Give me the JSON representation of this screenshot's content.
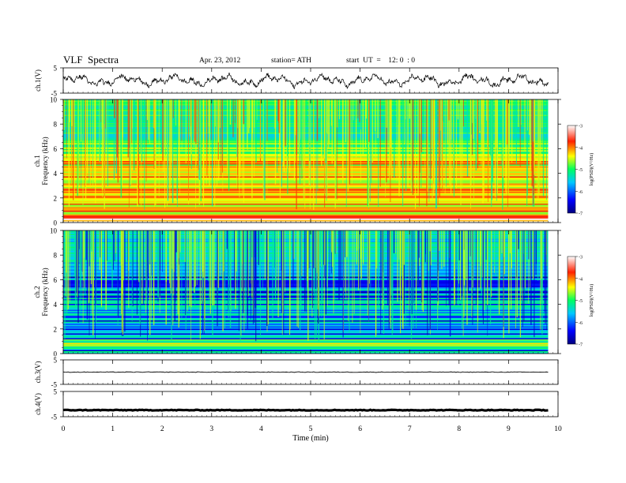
{
  "header": {
    "title": "VLF  Spectra",
    "date": "Apr. 23, 2012",
    "station": "station= ATH",
    "start": "start  UT  =    12: 0  : 0"
  },
  "chart_data": [
    {
      "type": "line",
      "panel": "ch1-waveform",
      "ylabel": "ch.1(V)",
      "ylim": [
        -5,
        5
      ],
      "y_ticks": [
        "5",
        "-5"
      ]
    },
    {
      "type": "heatmap",
      "panel": "ch1-spectrogram",
      "ylabel_channel": "ch.1",
      "ylabel": "Frequency  (kHz)",
      "ylim": [
        0,
        10
      ],
      "y_ticks": [
        "0",
        "2",
        "4",
        "6",
        "8",
        "10"
      ],
      "colorbar": {
        "label": "log(PSD)(V²/Hz)",
        "range": [
          -7,
          -3
        ],
        "ticks": [
          "-3",
          "-4",
          "-5",
          "-6",
          "-7"
        ]
      }
    },
    {
      "type": "heatmap",
      "panel": "ch2-spectrogram",
      "ylabel_channel": "ch.2",
      "ylabel": "Frequency  (kHz)",
      "ylim": [
        0,
        10
      ],
      "y_ticks": [
        "0",
        "2",
        "4",
        "6",
        "8",
        "10"
      ],
      "colorbar": {
        "label": "log(PSD)(V²/Hz)",
        "range": [
          -7,
          -3
        ],
        "ticks": [
          "-3",
          "-4",
          "-5",
          "-6",
          "-7"
        ]
      }
    },
    {
      "type": "line",
      "panel": "ch3-waveform",
      "ylabel": "ch.3(V)",
      "ylim": [
        -5,
        5
      ],
      "y_ticks": [
        "5",
        "-5"
      ]
    },
    {
      "type": "line",
      "panel": "ch4-waveform",
      "ylabel": "ch.4(V)",
      "ylim": [
        -5,
        5
      ],
      "y_ticks": [
        "5",
        "-5"
      ]
    }
  ],
  "x_axis": {
    "label": "Time  (min)",
    "range": [
      0,
      10
    ],
    "ticks": [
      "0",
      "1",
      "2",
      "3",
      "4",
      "5",
      "6",
      "7",
      "8",
      "9",
      "10"
    ],
    "data_end": 9.8
  }
}
